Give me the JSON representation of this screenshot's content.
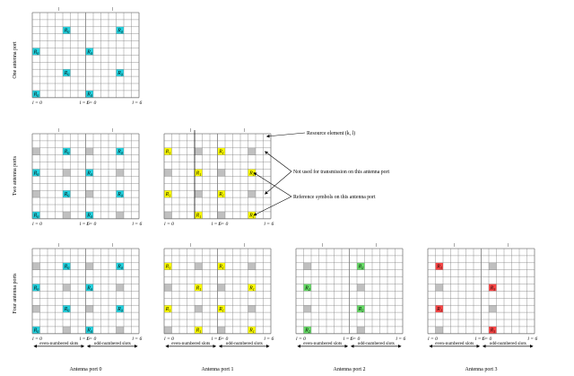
{
  "row_labels": [
    "One antenna port",
    "Two antenna ports",
    "Four antenna ports"
  ],
  "port_captions": [
    "Antenna port 0",
    "Antenna port 1",
    "Antenna port 2",
    "Antenna port 3"
  ],
  "slot_labels": {
    "even": "even-numbered slots",
    "odd": "odd-numbered slots"
  },
  "l_labels": [
    "l = 0",
    "l = 6",
    "l = 0",
    "l = 6"
  ],
  "callouts": {
    "resource_element": "Resource element (k, l)",
    "not_used": "Not used for transmission on this antenna port",
    "reference_symbols": "Reference symbols on this antenna port"
  },
  "symbols": {
    "R0": "R",
    "s0": "0",
    "R1": "R",
    "s1": "1",
    "R2": "R",
    "s2": "2",
    "R3": "R",
    "s3": "3"
  },
  "colors": {
    "R0": "#22d3e0",
    "R1": "#ffff00",
    "R2": "#66dd66",
    "R3": "#ff4444",
    "unused": "#c0c0c0",
    "grid": "#7a7a7a"
  }
}
